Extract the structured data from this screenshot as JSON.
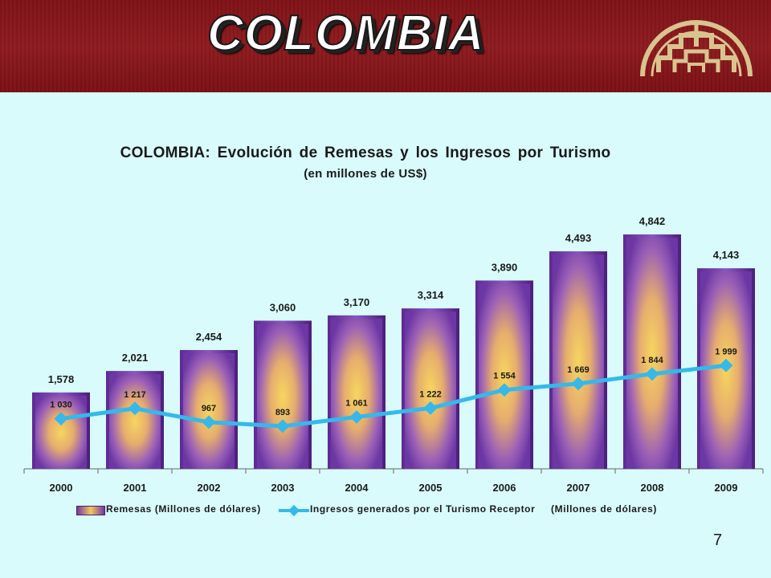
{
  "header": {
    "title": "COLOMBIA",
    "background_color": "#8e1b1f",
    "logo_icon": "andean-community-logo-icon"
  },
  "page_number": "7",
  "legend": {
    "bar_label": "Remesas (Millones de dólares)",
    "line_label": "Ingresos generados por el Turismo Receptor     (Millones de dólares)"
  },
  "chart_data": {
    "type": "bar",
    "title": "COLOMBIA: Evolución de Remesas y los Ingresos por Turismo",
    "subtitle": "(en millones de US$)",
    "categories": [
      "2000",
      "2001",
      "2002",
      "2003",
      "2004",
      "2005",
      "2006",
      "2007",
      "2008",
      "2009"
    ],
    "series": [
      {
        "name": "Remesas (Millones de dólares)",
        "type": "bar",
        "values": [
          1578,
          2021,
          2454,
          3060,
          3170,
          3314,
          3890,
          4493,
          4842,
          4143
        ],
        "labels": [
          "1,578",
          "2,021",
          "2,454",
          "3,060",
          "3,170",
          "3,314",
          "3,890",
          "4,493",
          "4,842",
          "4,143"
        ],
        "color": "#7b3fb0"
      },
      {
        "name": "Ingresos generados por el Turismo Receptor     (Millones de dólares)",
        "type": "line",
        "values": [
          1030,
          1217,
          967,
          893,
          1061,
          1222,
          1554,
          1669,
          1844,
          1999
        ],
        "labels": [
          "1 030",
          "1 217",
          "967",
          "893",
          "1 061",
          "1 222",
          "1 554",
          "1 669",
          "1 844",
          "1 999"
        ],
        "color": "#35b9ea"
      }
    ],
    "ylim": [
      0,
      5000
    ],
    "grid": false,
    "legend_position": "bottom"
  }
}
